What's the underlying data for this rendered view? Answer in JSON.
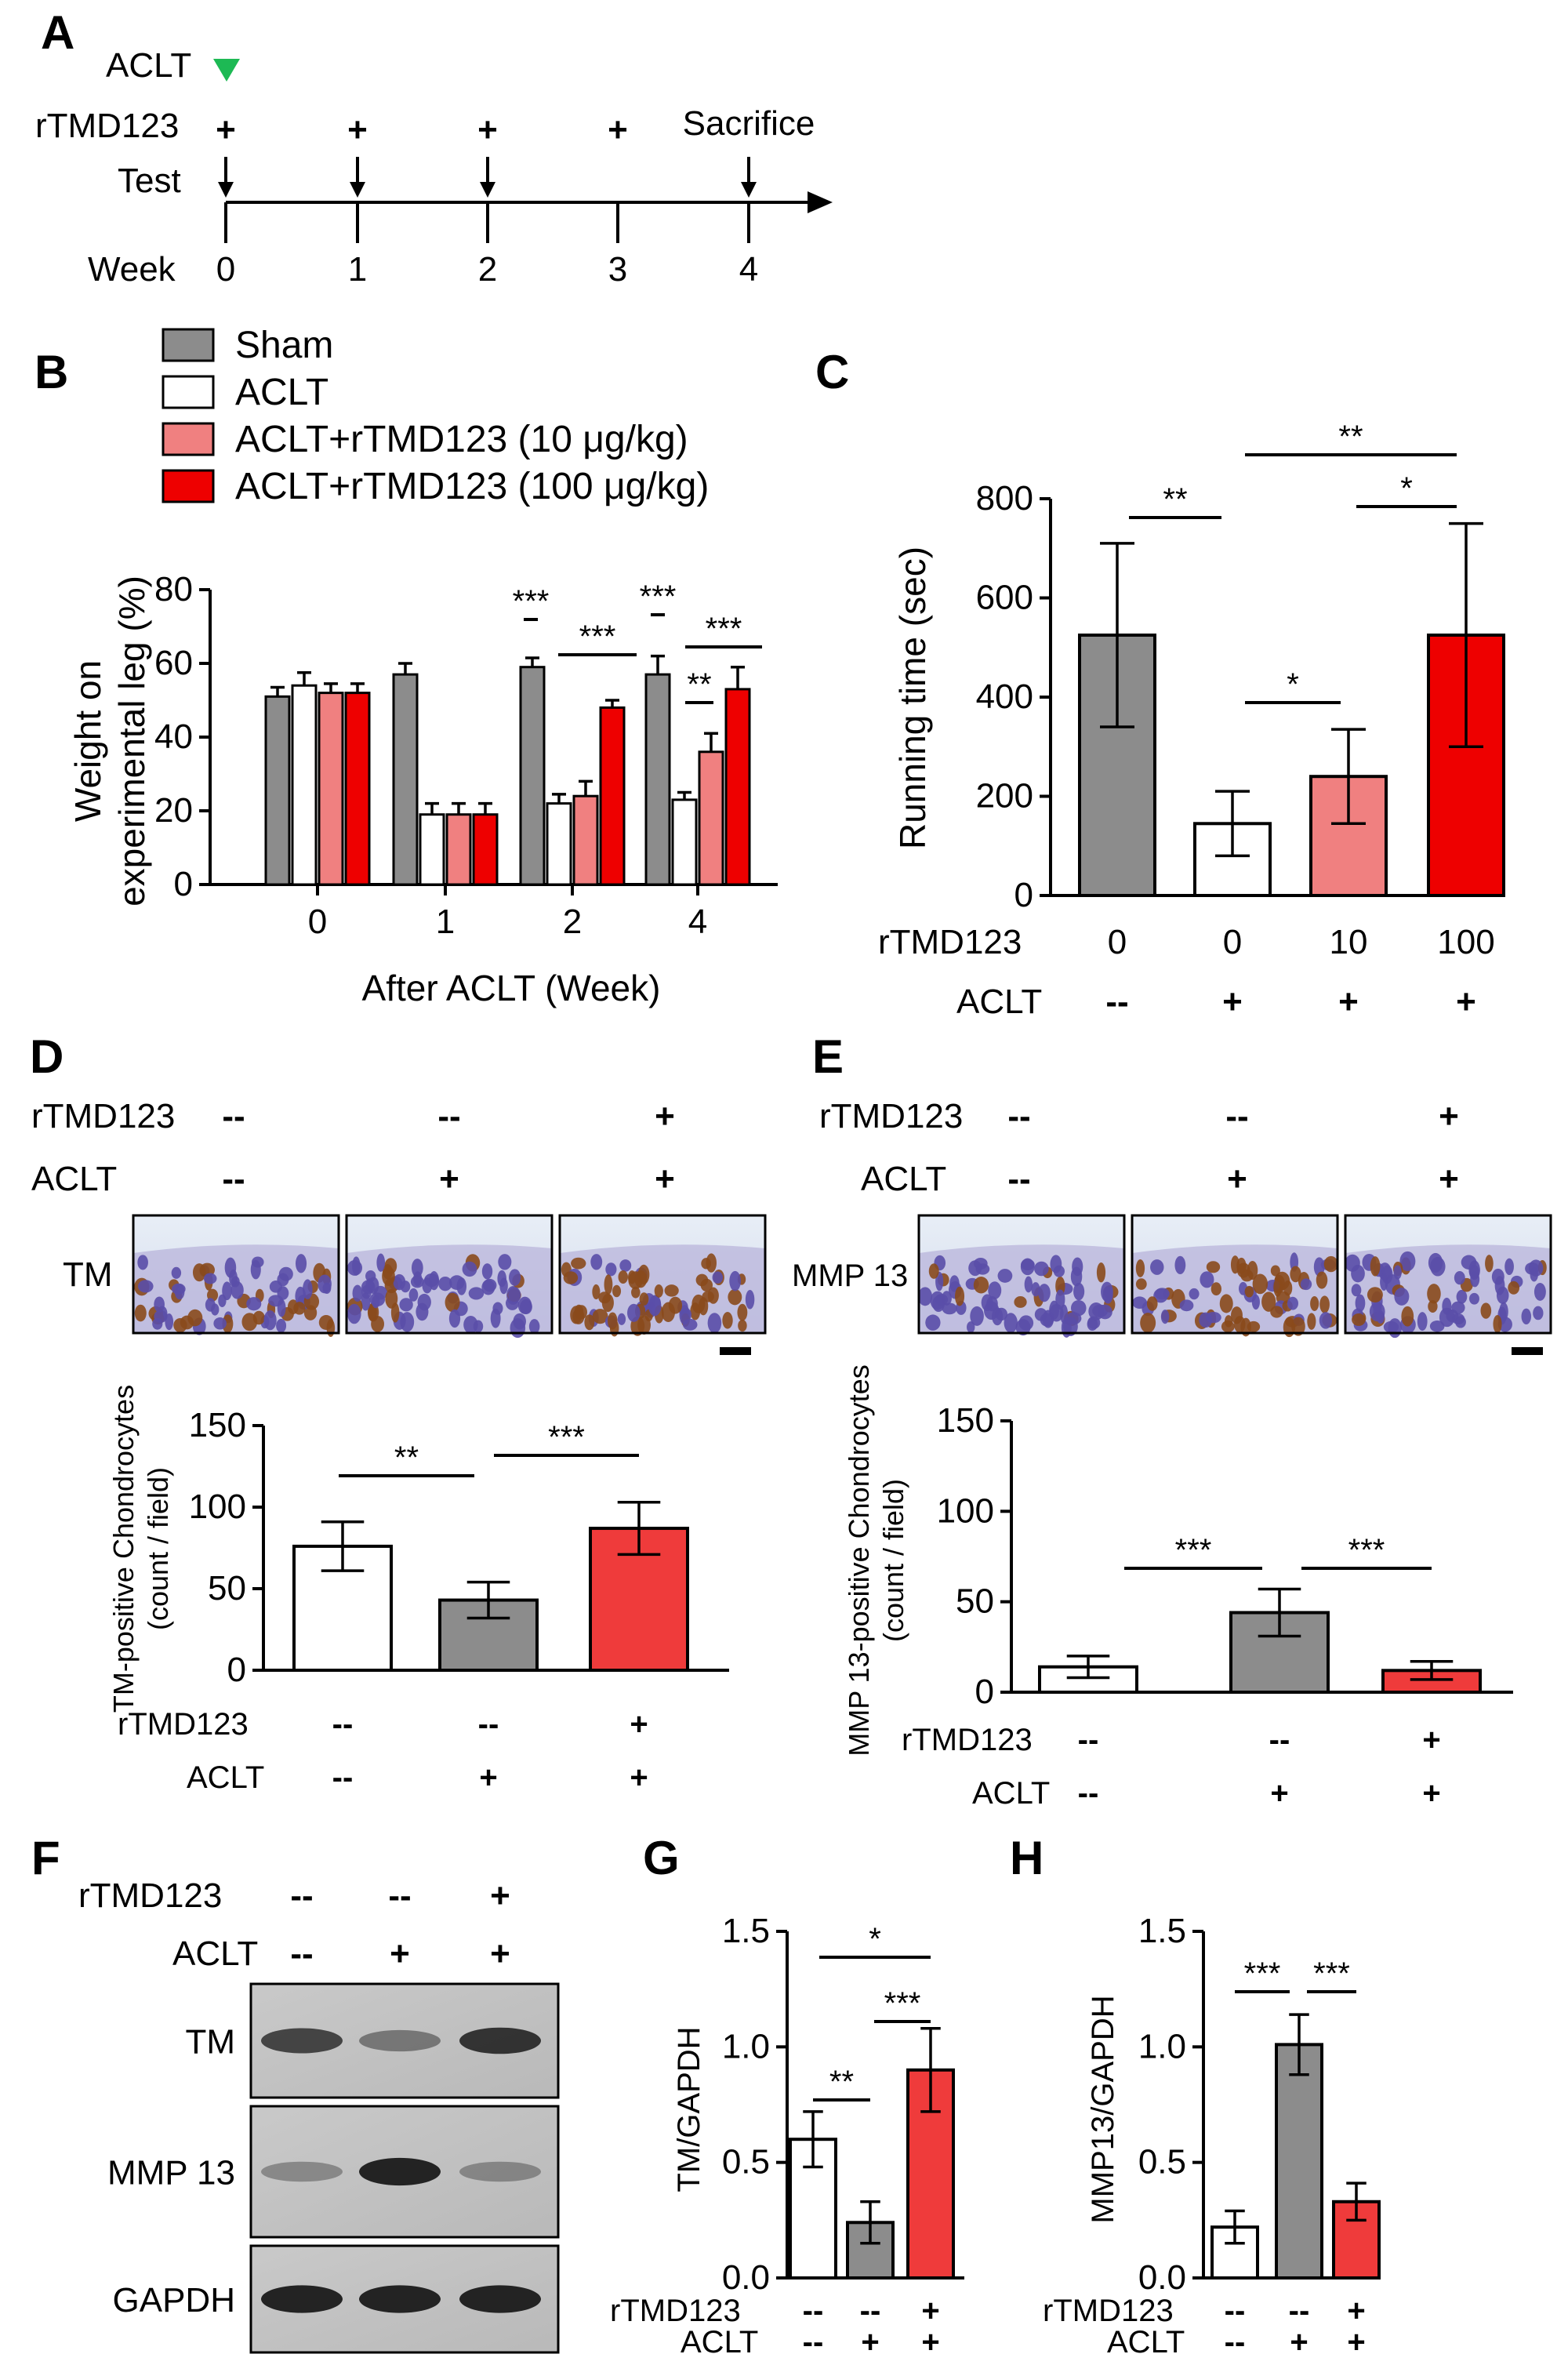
{
  "colors": {
    "sham": "#8c8c8c",
    "aclt": "#ffffff",
    "low_dose": "#f08080",
    "high_dose": "#ee0000",
    "red": "#ef3b3b",
    "marker": "#1db954"
  },
  "panel_labels": [
    "A",
    "B",
    "C",
    "D",
    "E",
    "F",
    "G",
    "H"
  ],
  "timeline": {
    "aclt_label": "ACLT",
    "rtmd_label": "rTMD123",
    "test_label": "Test",
    "week_label": "Week",
    "sacrifice_label": "Sacrifice",
    "plus": "+",
    "weeks": [
      "0",
      "1",
      "2",
      "3",
      "4"
    ],
    "tests_at_weeks": [
      "0",
      "1",
      "2",
      "4"
    ]
  },
  "legend": [
    "Sham",
    "ACLT",
    "ACLT+rTMD123 (10 μg/kg)",
    "ACLT+rTMD123 (100 μg/kg)"
  ],
  "images": {
    "D_stain_label": "TM",
    "E_stain_label": "MMP 13",
    "F_bands": [
      "TM",
      "MMP 13",
      "GAPDH"
    ]
  },
  "treatment_rows": {
    "rtmd_label": "rTMD123",
    "aclt_label": "ACLT",
    "rtmd_signs": [
      "--",
      "--",
      "+"
    ],
    "aclt_signs": [
      "--",
      "+",
      "+"
    ]
  },
  "chart_data": [
    {
      "panel": "B",
      "type": "bar",
      "categories": [
        "0",
        "1",
        "2",
        "4"
      ],
      "series": [
        {
          "name": "Sham",
          "values": [
            51,
            57,
            null,
            null
          ],
          "err": [
            2.5,
            3,
            null,
            null
          ]
        },
        {
          "name": "ACLT",
          "values": [
            null,
            null,
            null,
            null
          ],
          "err": [
            null,
            null,
            null,
            null
          ]
        }
      ],
      "groups": [
        {
          "category": "0",
          "values": [
            51,
            54,
            52,
            52
          ],
          "err": [
            2.5,
            3.5,
            2.5,
            2.5
          ]
        },
        {
          "category": "1",
          "values": [
            57,
            19,
            19,
            19
          ],
          "err": [
            3,
            3,
            3,
            3
          ]
        },
        {
          "category": "2",
          "values": [
            59,
            22,
            24,
            48
          ],
          "err": [
            2.5,
            2.5,
            4,
            2
          ]
        },
        {
          "category": "4",
          "values": [
            57,
            23,
            36,
            53
          ],
          "err": [
            5,
            2,
            5,
            6
          ]
        }
      ],
      "xlabel": "After ACLT (Week)",
      "ylabel": "Weight on experimental leg (%)",
      "ylim": [
        0,
        80
      ],
      "yticks": [
        "0",
        "20",
        "40",
        "60",
        "80"
      ],
      "significance": [
        "***",
        "***",
        "***",
        "***",
        "**"
      ]
    },
    {
      "panel": "C",
      "type": "bar",
      "categories": [
        "0",
        "0",
        "10",
        "100"
      ],
      "row1_label": "rTMD123",
      "row2_label": "ACLT",
      "row2": [
        "--",
        "+",
        "+",
        "+"
      ],
      "values": [
        525,
        145,
        240,
        525
      ],
      "err": [
        185,
        65,
        95,
        225
      ],
      "ylabel": "Running time (sec)",
      "ylim": [
        0,
        800
      ],
      "yticks": [
        "0",
        "200",
        "400",
        "600",
        "800"
      ],
      "significance": [
        "**",
        "**",
        "*",
        "*"
      ]
    },
    {
      "panel": "D",
      "type": "bar",
      "values": [
        76,
        43,
        87
      ],
      "err": [
        15,
        11,
        16
      ],
      "ylabel": "TM-positive Chondrocytes",
      "ylabel2": "(count / field)",
      "ylim": [
        0,
        150
      ],
      "yticks": [
        "0",
        "50",
        "100",
        "150"
      ],
      "significance": [
        "**",
        "***"
      ]
    },
    {
      "panel": "E",
      "type": "bar",
      "values": [
        14,
        44,
        12
      ],
      "err": [
        6,
        13,
        5
      ],
      "ylabel": "MMP 13-positive Chondrocytes",
      "ylabel2": "(count / field)",
      "ylim": [
        0,
        150
      ],
      "yticks": [
        "0",
        "50",
        "100",
        "150"
      ],
      "significance": [
        "***",
        "***"
      ]
    },
    {
      "panel": "G",
      "type": "bar",
      "values": [
        0.6,
        0.24,
        0.9
      ],
      "err": [
        0.12,
        0.09,
        0.18
      ],
      "ylabel": "TM/GAPDH",
      "ylim": [
        0,
        1.5
      ],
      "yticks": [
        "0.0",
        "0.5",
        "1.0",
        "1.5"
      ],
      "significance": [
        "**",
        "*",
        "***"
      ]
    },
    {
      "panel": "H",
      "type": "bar",
      "values": [
        0.22,
        1.01,
        0.33
      ],
      "err": [
        0.07,
        0.13,
        0.08
      ],
      "ylabel": "MMP13/GAPDH",
      "ylim": [
        0,
        1.5
      ],
      "yticks": [
        "0.0",
        "0.5",
        "1.0",
        "1.5"
      ],
      "significance": [
        "***",
        "***"
      ]
    }
  ]
}
